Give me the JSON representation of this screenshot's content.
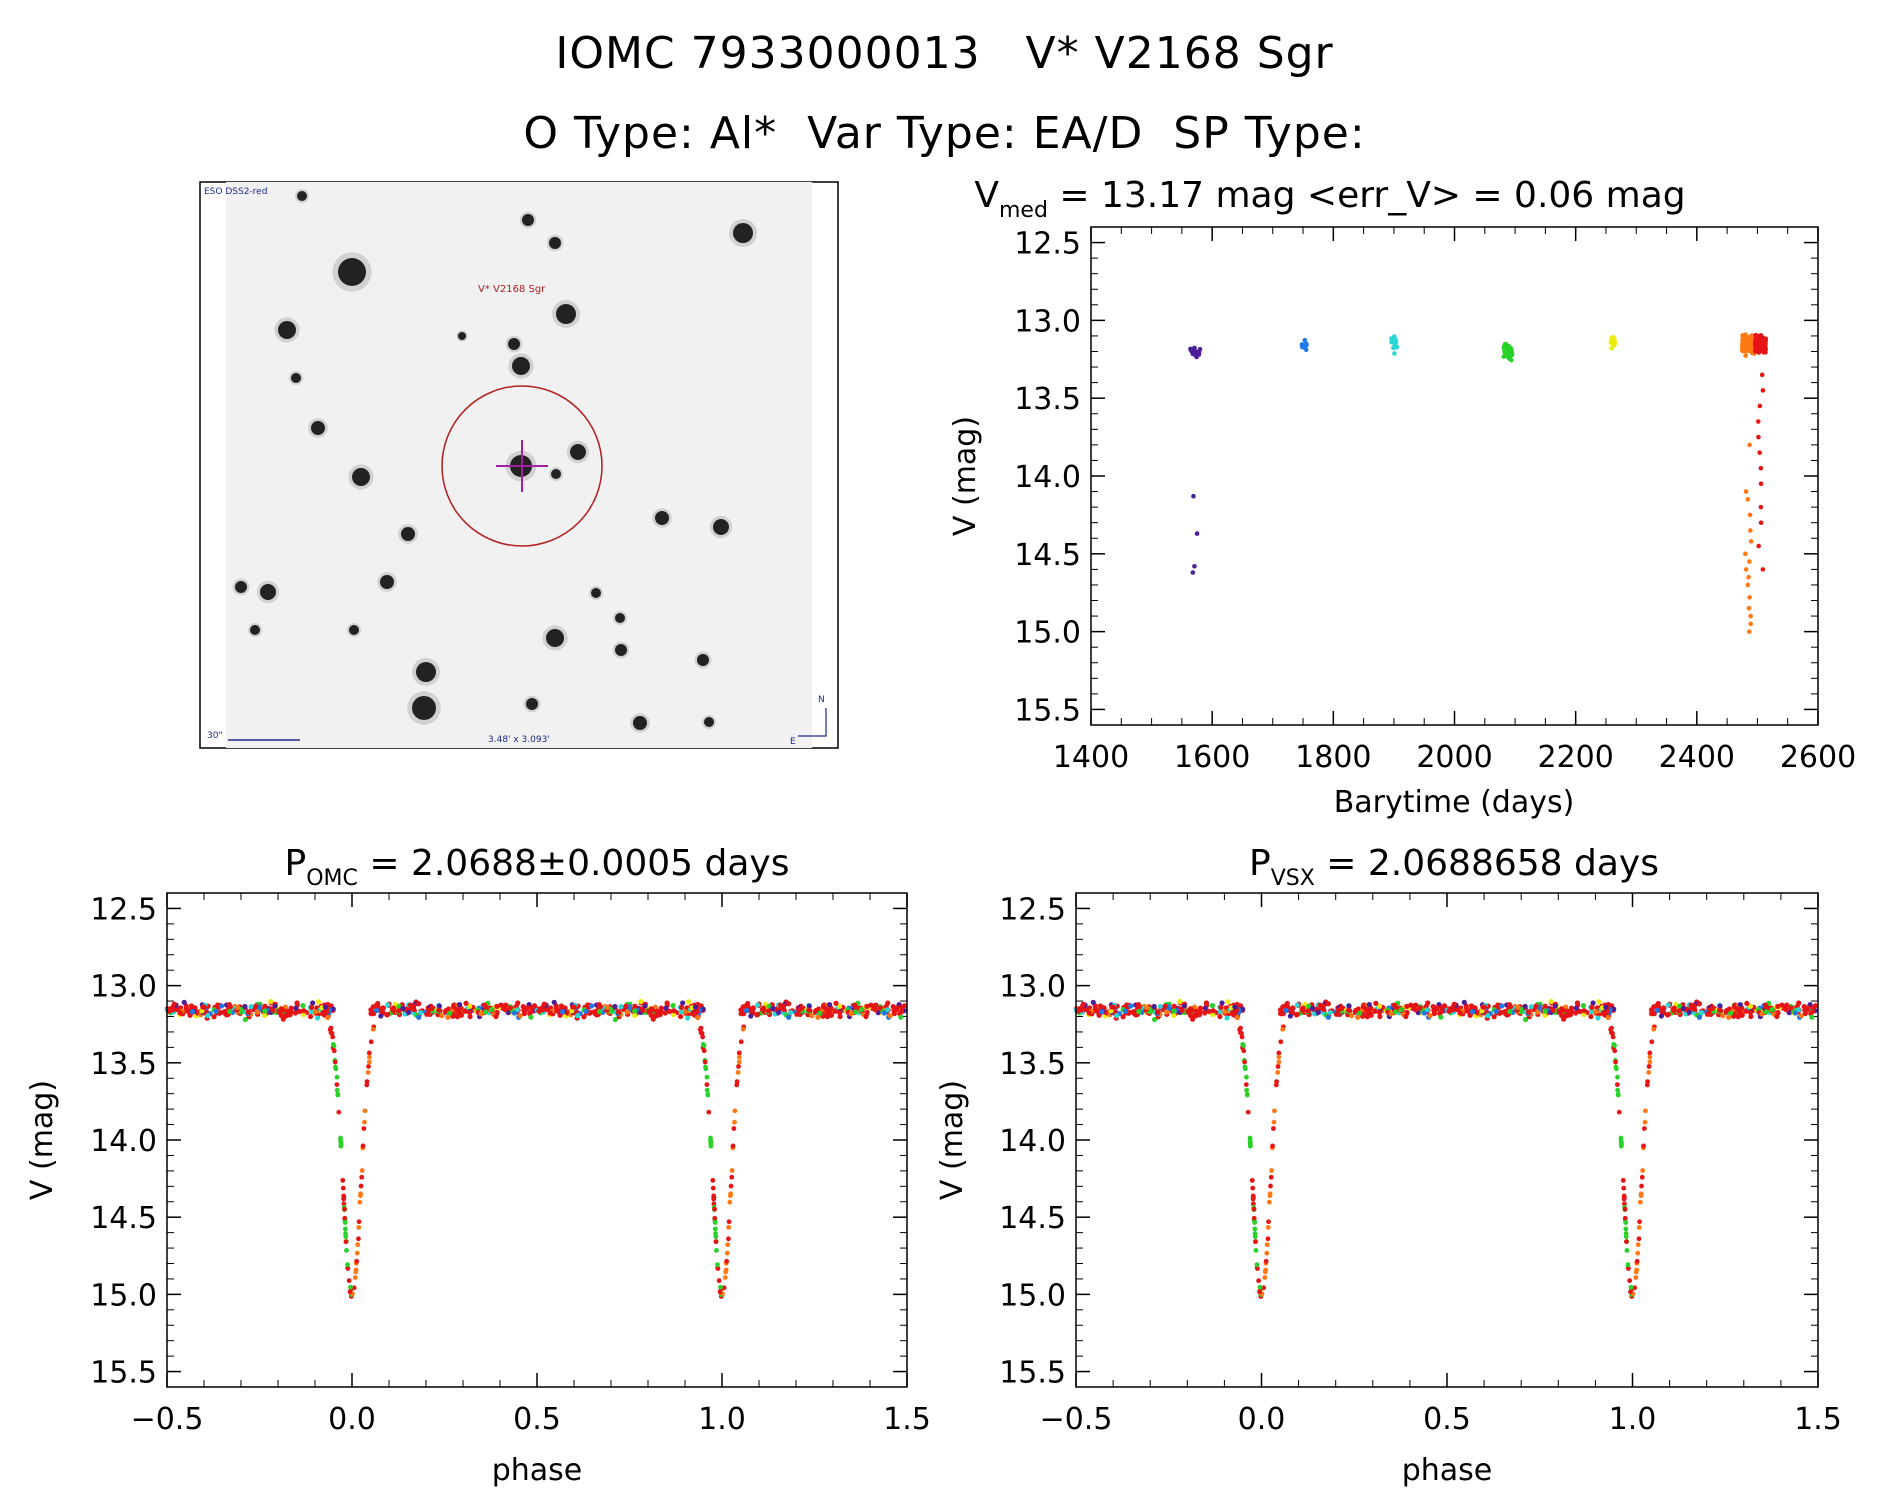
{
  "header": {
    "line1": "IOMC 7933000013   V* V2168 Sgr",
    "line2": "O Type: Al*  Var Type: EA/D  SP Type:"
  },
  "finder": {
    "survey_label": "ESO DSS2-red",
    "target_label": "V* V2168 Sgr",
    "scale_label": "30\"",
    "fov_label": "3.48' x 3.093'",
    "north_label": "N",
    "east_label": "E"
  },
  "chart_data": [
    {
      "id": "lightcurve",
      "type": "scatter",
      "title_main": "V",
      "title_sub": "med",
      "title_rest": " = 13.17 mag <err_V> = 0.06 mag",
      "xlabel": "Barytime (days)",
      "ylabel": "V (mag)",
      "xlim": [
        1400,
        2600
      ],
      "ylim": [
        15.6,
        12.4
      ],
      "xticks": [
        "1400",
        "1600",
        "1800",
        "2000",
        "2200",
        "2400",
        "2600"
      ],
      "yticks": [
        "12.5",
        "13.0",
        "13.5",
        "14.0",
        "14.5",
        "15.0",
        "15.5"
      ],
      "series": [
        {
          "name": "epoch1",
          "color": "#4b1f9c",
          "x_center": 1572,
          "x_spread": 8,
          "n": 22,
          "mag_median": 13.2,
          "mag_spread": 0.08,
          "faint_points": [
            14.13,
            14.37,
            14.58,
            14.62
          ]
        },
        {
          "name": "epoch2",
          "color": "#1e78e6",
          "x_center": 1752,
          "x_spread": 4,
          "n": 12,
          "mag_median": 13.16,
          "mag_spread": 0.06,
          "faint_points": []
        },
        {
          "name": "epoch3",
          "color": "#2ad6d6",
          "x_center": 1900,
          "x_spread": 5,
          "n": 20,
          "mag_median": 13.15,
          "mag_spread": 0.08,
          "faint_points": []
        },
        {
          "name": "epoch4",
          "color": "#28d228",
          "x_center": 2088,
          "x_spread": 7,
          "n": 45,
          "mag_median": 13.2,
          "mag_spread": 0.09,
          "faint_points": []
        },
        {
          "name": "epoch5",
          "color": "#ecec0a",
          "x_center": 2262,
          "x_spread": 4,
          "n": 20,
          "mag_median": 13.15,
          "mag_spread": 0.06,
          "faint_points": []
        },
        {
          "name": "epoch6",
          "color": "#ff7814",
          "x_center": 2485,
          "x_spread": 10,
          "n": 160,
          "mag_median": 13.15,
          "mag_spread": 0.09,
          "faint_points": [
            13.8,
            14.1,
            14.25,
            14.35,
            14.42,
            14.5,
            14.6,
            14.7,
            14.78,
            14.85,
            14.9,
            14.95,
            15.0,
            14.15,
            14.55,
            14.65
          ]
        },
        {
          "name": "epoch7",
          "color": "#e61414",
          "x_center": 2505,
          "x_spread": 9,
          "n": 180,
          "mag_median": 13.15,
          "mag_spread": 0.09,
          "faint_points": [
            13.35,
            13.45,
            13.55,
            13.65,
            13.75,
            13.85,
            13.95,
            14.05,
            14.2,
            14.3,
            14.45,
            14.6
          ]
        }
      ]
    },
    {
      "id": "phase_omc",
      "type": "scatter",
      "title_main": "P",
      "title_sub": "OMC",
      "title_rest": " = 2.0688±0.0005 days",
      "xlabel": "phase",
      "ylabel": "V (mag)",
      "xlim": [
        -0.5,
        1.5
      ],
      "ylim": [
        15.6,
        12.4
      ],
      "xticks": [
        "−0.5",
        "0.0",
        "0.5",
        "1.0",
        "1.5"
      ],
      "yticks": [
        "12.5",
        "13.0",
        "13.5",
        "14.0",
        "14.5",
        "15.0",
        "15.5"
      ],
      "eclipse": {
        "phase": 0.0,
        "depth_mag": 15.0,
        "baseline_mag": 13.16,
        "width": 0.035
      },
      "colors": [
        "#e61414",
        "#ff7814",
        "#e61414",
        "#28d228",
        "#ecec0a",
        "#2ad6d6",
        "#1e78e6",
        "#4b1f9c"
      ]
    },
    {
      "id": "phase_vsx",
      "type": "scatter",
      "title_main": "P",
      "title_sub": "VSX",
      "title_rest": " = 2.0688658 days",
      "xlabel": "phase",
      "ylabel": "V (mag)",
      "xlim": [
        -0.5,
        1.5
      ],
      "ylim": [
        15.6,
        12.4
      ],
      "xticks": [
        "−0.5",
        "0.0",
        "0.5",
        "1.0",
        "1.5"
      ],
      "yticks": [
        "12.5",
        "13.0",
        "13.5",
        "14.0",
        "14.5",
        "15.0",
        "15.5"
      ],
      "eclipse": {
        "phase": 0.0,
        "depth_mag": 15.0,
        "baseline_mag": 13.16,
        "width": 0.035
      },
      "colors": [
        "#e61414",
        "#ff7814",
        "#e61414",
        "#28d228",
        "#ecec0a",
        "#2ad6d6",
        "#1e78e6",
        "#4b1f9c"
      ]
    }
  ]
}
